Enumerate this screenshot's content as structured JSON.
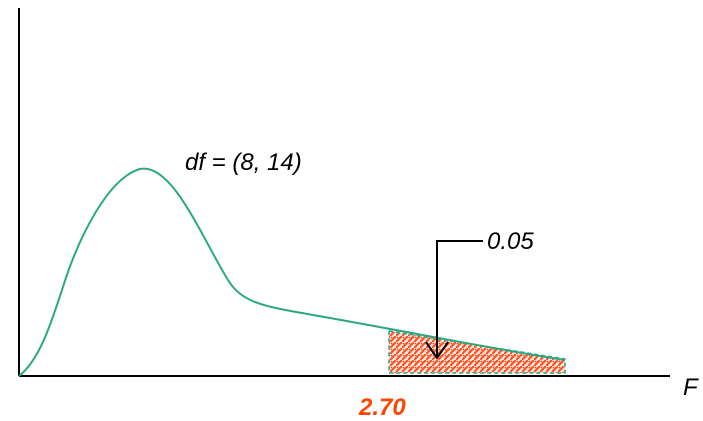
{
  "diagram": {
    "df_label": "df = (8, 14)",
    "area_label": "0.05",
    "critical_value_label": "2.70",
    "x_axis_label": "F"
  },
  "colors": {
    "curve": "#2aa884",
    "axis": "#000000",
    "shade_fill": "#ff6a3d",
    "shade_border": "#2aa884",
    "critical_value": "#ff4500",
    "text": "#000000"
  }
}
